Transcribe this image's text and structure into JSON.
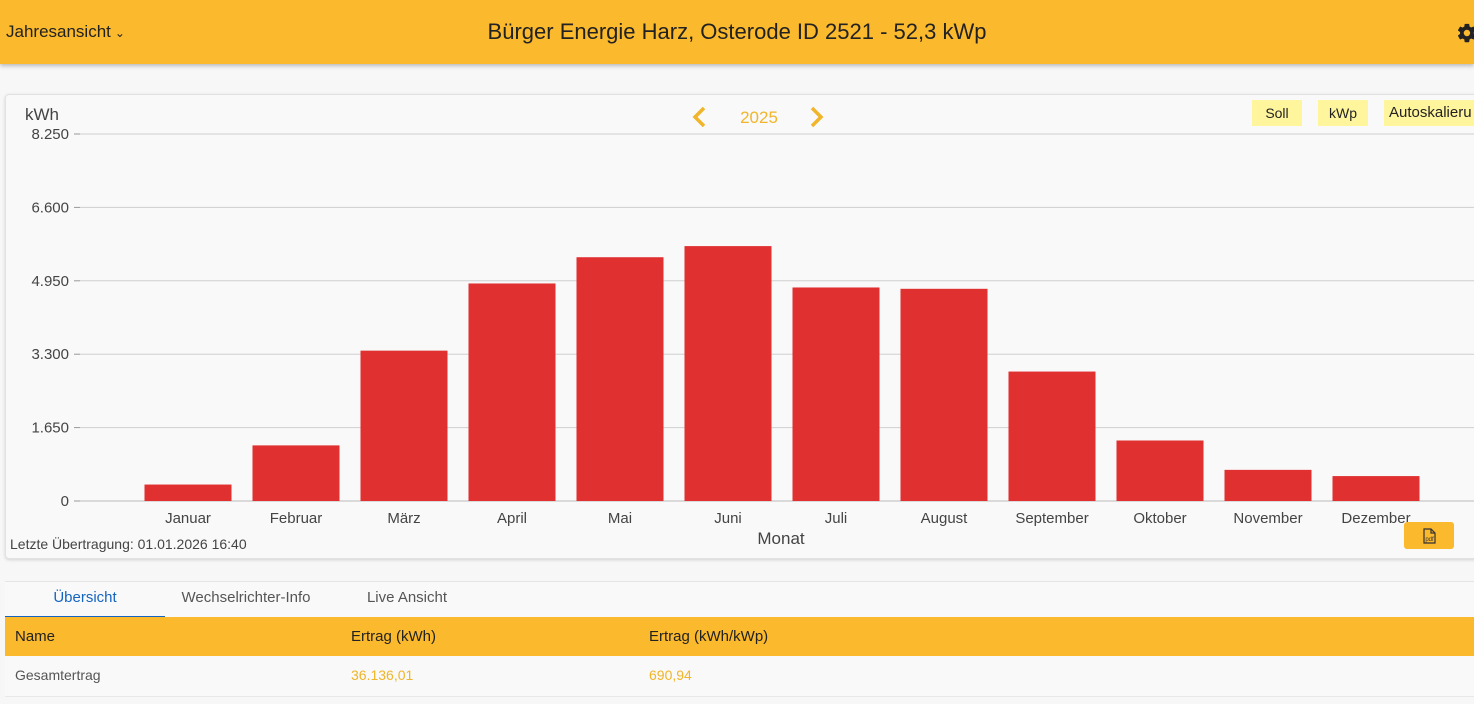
{
  "header": {
    "view_select": "Jahresansicht",
    "title": "Bürger Energie Harz, Osterode ID 2521 - 52,3 kWp"
  },
  "year_nav": {
    "year": "2025"
  },
  "chips": {
    "soll": "Soll",
    "kwp": "kWp",
    "auto": "Autoskalieru"
  },
  "status": "Letzte Übertragung: 01.01.2026 16:40",
  "chart_data": {
    "type": "bar",
    "ylabel": "kWh",
    "xlabel": "Monat",
    "categories": [
      "Januar",
      "Februar",
      "März",
      "April",
      "Mai",
      "Juni",
      "Juli",
      "August",
      "September",
      "Oktober",
      "November",
      "Dezember"
    ],
    "values": [
      370,
      1250,
      3380,
      4890,
      5480,
      5730,
      4800,
      4770,
      2910,
      1360,
      700,
      560
    ],
    "yticks": [
      0,
      1650,
      3300,
      4950,
      6600,
      8250
    ],
    "ytick_labels": [
      "0",
      "1.650",
      "3.300",
      "4.950",
      "6.600",
      "8.250"
    ],
    "ylim": [
      0,
      8250
    ],
    "bar_color": "#e03030",
    "grid": true
  },
  "tabs": [
    "Übersicht",
    "Wechselrichter-Info",
    "Live Ansicht"
  ],
  "table": {
    "headers": [
      "Name",
      "Ertrag (kWh)",
      "Ertrag (kWh/kWp)"
    ],
    "rows": [
      [
        "Gesamtertrag",
        "36.136,01",
        "690,94"
      ]
    ]
  },
  "colors": {
    "accent": "#fbb92d",
    "bar": "#e03030",
    "link": "#1565c0"
  },
  "icons": {
    "settings": "gear-icon",
    "prev": "chevron-left-icon",
    "next": "chevron-right-icon",
    "export": "pdf-export-icon"
  }
}
